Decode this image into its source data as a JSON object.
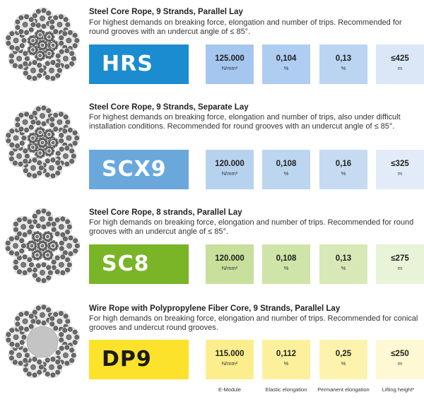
{
  "products": [
    {
      "title": "Steel Core Rope, 9 Strands, Parallel Lay",
      "description": "For highest demands on breaking force, elongation and number of trips. Recommended for round grooves with an undercut angle of ≤ 85°.",
      "code": "HRS",
      "rope_icon": "steel-core-rope-9-strands-icon",
      "colors": {
        "badge": "#1c8cd0",
        "box1": "#a5c6ee",
        "box2": "#afcdf0",
        "box3": "#bad4f2",
        "box4": "#dbe7f7"
      },
      "specs": [
        {
          "value": "125.000",
          "unit": "N/mm²"
        },
        {
          "value": "0,104",
          "unit": "%"
        },
        {
          "value": "0,13",
          "unit": "%"
        },
        {
          "value": "≤425",
          "unit": "m"
        }
      ]
    },
    {
      "title": "Steel Core Rope, 9 Strands, Separate Lay",
      "description": "For highest demands on breaking force, elongation and number of trips, also under difficult installation conditions. Recommended for round grooves with an undercut angle of ≤ 85°.",
      "code": "SCX9",
      "rope_icon": "steel-core-rope-9-strands-icon",
      "colors": {
        "badge": "#6aa8dc",
        "box1": "#b7d2ee",
        "box2": "#bdd6ef",
        "box3": "#c6dbf1",
        "box4": "#e2ecf8"
      },
      "specs": [
        {
          "value": "120.000",
          "unit": "N/mm²"
        },
        {
          "value": "0,108",
          "unit": "%"
        },
        {
          "value": "0,16",
          "unit": "%"
        },
        {
          "value": "≤325",
          "unit": "m"
        }
      ]
    },
    {
      "title": "Steel Core Rope, 8 strands, Parallel Lay",
      "description": "For high demands on breaking force, elongation and number of trips. Recommended for round grooves with an undercut angle of ≤ 85°.",
      "code": "SC8",
      "rope_icon": "steel-core-rope-8-strands-icon",
      "colors": {
        "badge": "#7ab427",
        "box1": "#c8e09c",
        "box2": "#cfe4a8",
        "box3": "#d7e9b6",
        "box4": "#e9f3d8"
      },
      "specs": [
        {
          "value": "120.000",
          "unit": "N/mm²"
        },
        {
          "value": "0,108",
          "unit": "%"
        },
        {
          "value": "0,13",
          "unit": "%"
        },
        {
          "value": "≤275",
          "unit": "m"
        }
      ]
    },
    {
      "title": "Wire Rope with Polypropylene Fiber Core, 9 Strands, Parallel Lay",
      "description": "For high demands on breaking force, elongation and number of trips. Recommended for conical grooves and undercut round grooves.",
      "code": "DP9",
      "rope_icon": "fiber-core-rope-9-strands-icon",
      "colors": {
        "badge": "#fde22b",
        "box1": "#fcee8c",
        "box2": "#fdf09c",
        "box3": "#fdf3ad",
        "box4": "#fef8d4"
      },
      "specs": [
        {
          "value": "115.000",
          "unit": "N/mm²"
        },
        {
          "value": "0,112",
          "unit": "%"
        },
        {
          "value": "0,25",
          "unit": "%"
        },
        {
          "value": "≤250",
          "unit": "m"
        }
      ]
    }
  ],
  "column_labels": [
    "E-Module",
    "Elastic elongation",
    "Permanent elongation",
    "Lifting height*"
  ]
}
